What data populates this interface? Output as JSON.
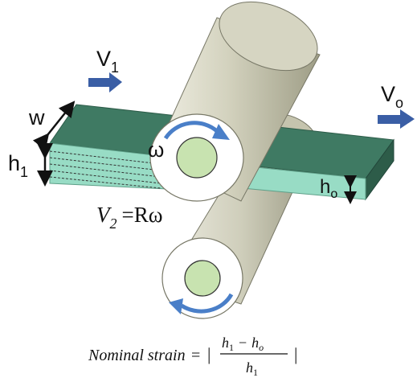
{
  "labels": {
    "v1": "V",
    "v1_sub": "1",
    "vo": "V",
    "vo_sub": "o",
    "w": "w",
    "h1": "h",
    "h1_sub": "1",
    "ho": "h",
    "ho_sub": "o",
    "omega": "ω",
    "v2": "V",
    "v2_sub": "2",
    "v2_rhs": "=Rω"
  },
  "formula": {
    "lhs": "Nominal strain",
    "eq": "=",
    "bar": "|",
    "num_h1": "h",
    "num_h1_sub": "1",
    "minus": "−",
    "num_ho": "h",
    "num_ho_sub": "o",
    "den_h": "h",
    "den_sub": "1"
  },
  "colors": {
    "strip_top": "#3f7a63",
    "strip_front": "#98dcc5",
    "strip_side": "#2d5c49",
    "roller_body": "#c9c8b4",
    "roller_end": "#ffffff",
    "hub": "#c8e3b0",
    "arrow": "#3a5ea5",
    "rotation": "#4a7fc8"
  }
}
